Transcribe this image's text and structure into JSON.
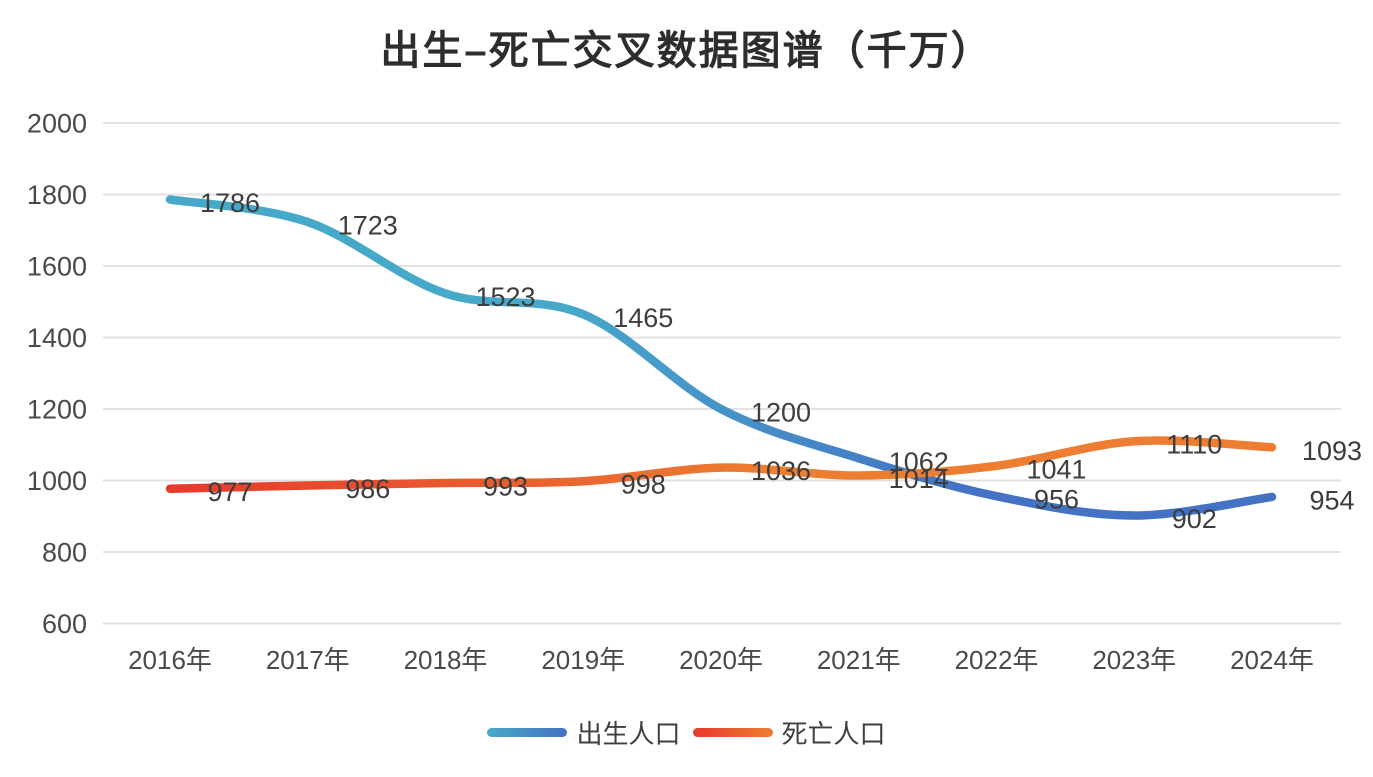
{
  "title": "出生–死亡交叉数据图谱（千万）",
  "legend": {
    "position": "bottom",
    "items": [
      "出生人口",
      "死亡人口"
    ]
  },
  "chart_data": {
    "type": "line",
    "title": "出生–死亡交叉数据图谱（千万）",
    "categories": [
      "2016年",
      "2017年",
      "2018年",
      "2019年",
      "2020年",
      "2021年",
      "2022年",
      "2023年",
      "2024年"
    ],
    "series": [
      {
        "name": "出生人口",
        "values": [
          1786,
          1723,
          1523,
          1465,
          1200,
          1062,
          956,
          902,
          954
        ],
        "color_start": "#47A9C9",
        "color_end": "#4472C4"
      },
      {
        "name": "死亡人口",
        "values": [
          977,
          986,
          993,
          998,
          1036,
          1014,
          1041,
          1110,
          1093
        ],
        "color_start": "#E7392C",
        "color_end": "#ED7D31"
      }
    ],
    "xlabel": "",
    "ylabel": "",
    "ylim": [
      600,
      2000
    ],
    "yticks": [
      2000,
      1800,
      1600,
      1400,
      1200,
      1000,
      800,
      600
    ],
    "grid": "horizontal-only",
    "gridline_color": "#E2E2E2",
    "axis_text_color": "#4A4A4A",
    "label_color": "#3D3D3D",
    "background": "#FFFFFF",
    "smoothed_lines": true,
    "data_labels": true,
    "legend_position": "bottom"
  }
}
